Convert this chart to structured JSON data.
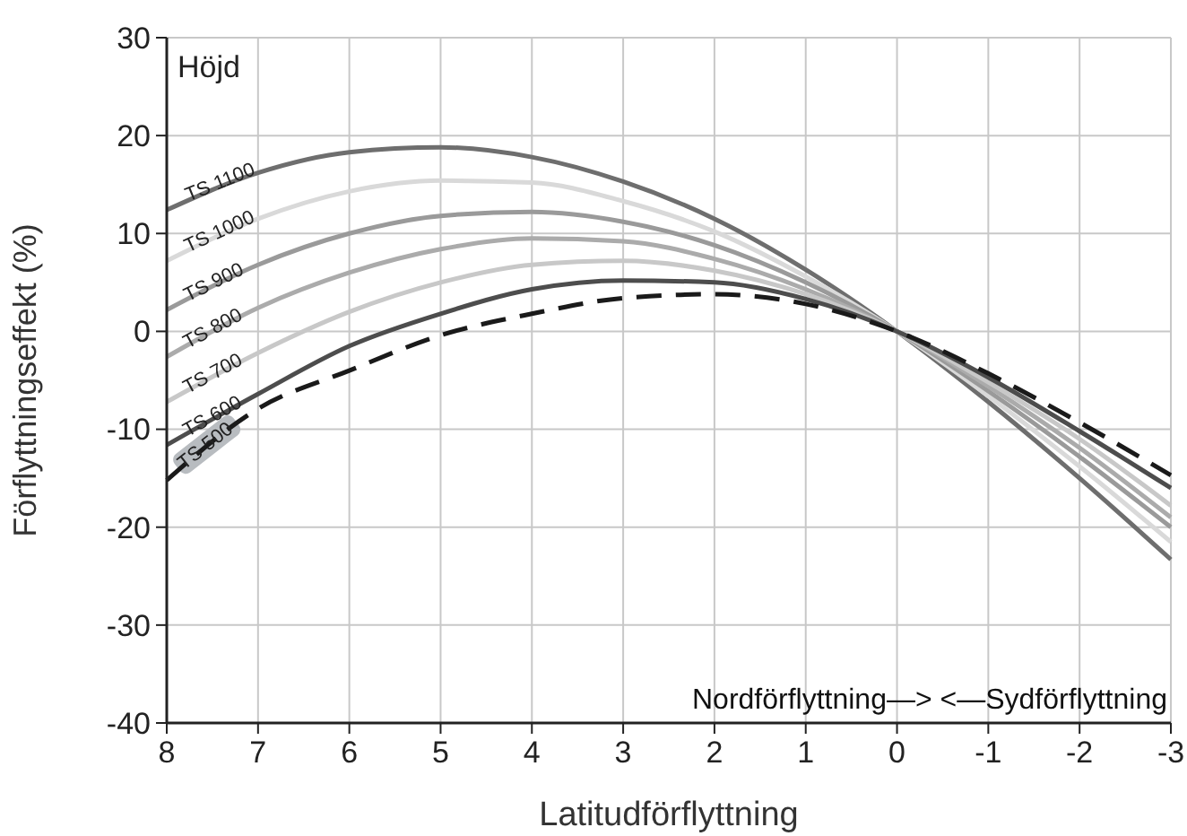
{
  "chart_data": {
    "type": "line",
    "xlabel": "Latitudförflyttning",
    "ylabel": "Förflyttningseffekt (%)",
    "annotations": [
      "Höjd",
      "Nordförflyttning—> <—Sydförflyttning"
    ],
    "x": [
      8,
      7,
      6,
      5,
      4,
      3,
      2,
      1,
      0,
      -1,
      -2,
      -3
    ],
    "xlim": [
      8,
      -3
    ],
    "xticks": [
      8,
      7,
      6,
      5,
      4,
      3,
      2,
      1,
      0,
      -1,
      -2,
      -3
    ],
    "ylim": [
      -40,
      30
    ],
    "yticks": [
      -40,
      -30,
      -20,
      -10,
      0,
      10,
      20,
      30
    ],
    "grid": true,
    "series": [
      {
        "name": "TS 1100",
        "color": "#6e6e6e",
        "values": [
          12.4,
          16.2,
          18.3,
          18.8,
          17.8,
          15.3,
          11.5,
          6.3,
          0,
          -7.2,
          -15,
          -23.3
        ]
      },
      {
        "name": "TS 1000",
        "color": "#d9d9d9",
        "values": [
          7.2,
          11.5,
          14.3,
          15.4,
          15.2,
          13.3,
          10.2,
          5.6,
          0,
          -6.6,
          -13.8,
          -21.5
        ]
      },
      {
        "name": "TS 900",
        "color": "#9a9a9a",
        "values": [
          2.2,
          6.8,
          10,
          11.8,
          12.2,
          11.2,
          8.8,
          5,
          0,
          -6.1,
          -12.8,
          -20
        ]
      },
      {
        "name": "TS 800",
        "color": "#ababab",
        "values": [
          -2.6,
          2.4,
          6,
          8.4,
          9.5,
          9.2,
          7.4,
          4.3,
          0,
          -5.6,
          -11.9,
          -19
        ]
      },
      {
        "name": "TS 700",
        "color": "#c8c8c8",
        "values": [
          -7.2,
          -2.2,
          2,
          5,
          6.8,
          7.2,
          6.2,
          3.8,
          0,
          -5.2,
          -11,
          -17.8
        ]
      },
      {
        "name": "TS 600",
        "color": "#4d4d4d",
        "values": [
          -11.6,
          -6.4,
          -1.5,
          1.8,
          4.3,
          5.2,
          5,
          3.3,
          0,
          -4.7,
          -10.2,
          -16
        ]
      },
      {
        "name": "TS 500",
        "color": "#1a1a1a",
        "line_style": "dashed",
        "values": [
          -15.2,
          -7.9,
          -4,
          -0.4,
          1.8,
          3.4,
          3.8,
          2.8,
          0,
          -4.3,
          -9.3,
          -14.7
        ]
      }
    ]
  }
}
